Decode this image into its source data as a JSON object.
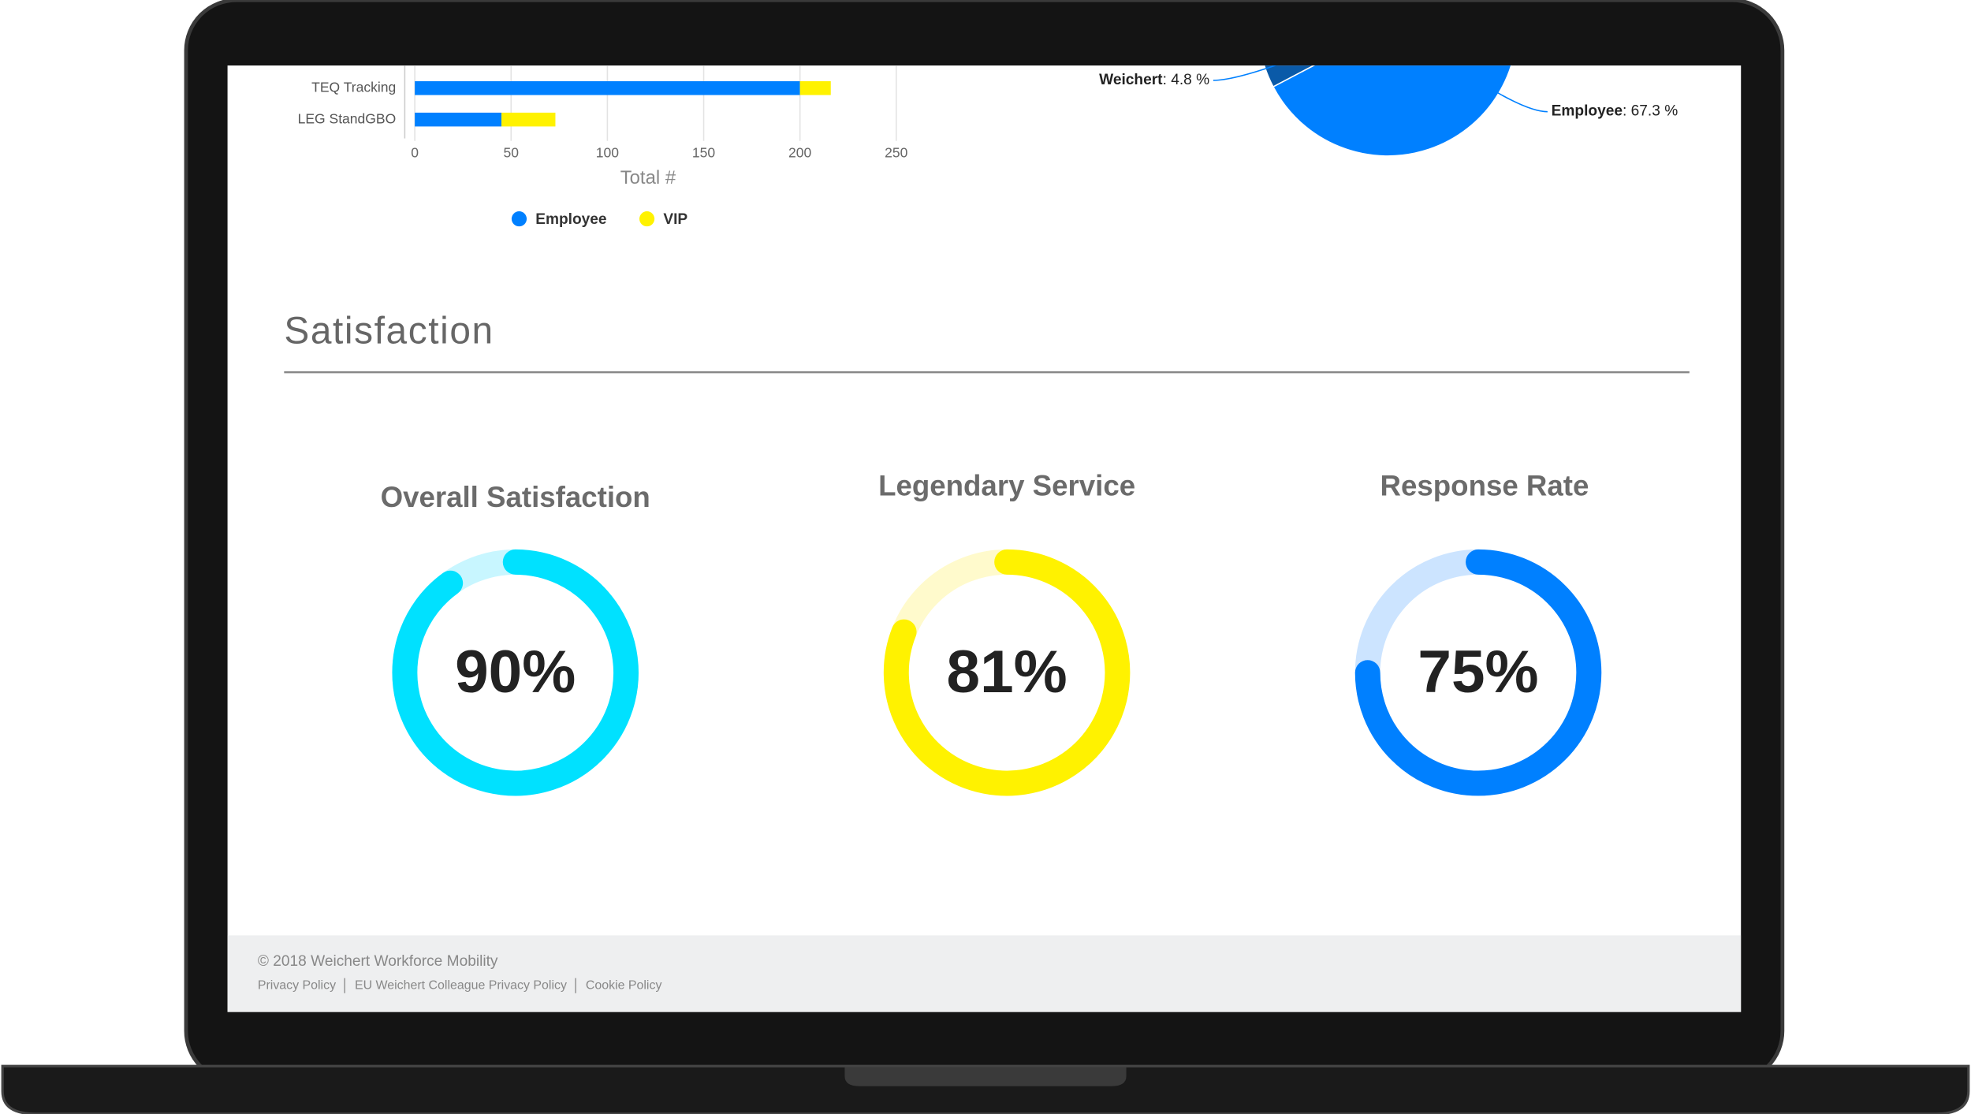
{
  "chart_data": [
    {
      "type": "hbar",
      "categories": [
        "TEQ Tracking",
        "LEG StandGBO"
      ],
      "series": [
        {
          "name": "Employee",
          "color": "#0080ff",
          "values": [
            200,
            45
          ]
        },
        {
          "name": "VIP",
          "color": "#fff200",
          "values": [
            16,
            28
          ]
        }
      ],
      "xlim": [
        0,
        250
      ],
      "xticks": [
        0,
        50,
        100,
        150,
        200,
        250
      ],
      "xlabel": "Total #",
      "grid": true,
      "legend": "bottom"
    },
    {
      "type": "pie",
      "categories": [
        "Employee",
        "Weichert"
      ],
      "values": [
        67.3,
        4.8
      ],
      "value_labels": [
        ": 67.3 %",
        ": 4.8 %"
      ],
      "colors": [
        "#0080ff",
        "#0a5aa8"
      ]
    },
    {
      "type": "gauge",
      "title": "Overall Satisfaction",
      "value": 90,
      "value_label": "90%",
      "color": "#00e1ff",
      "track_color": "#c8f6ff"
    },
    {
      "type": "gauge",
      "title": "Legendary Service",
      "value": 81,
      "value_label": "81%",
      "color": "#fff200",
      "track_color": "#fffacc"
    },
    {
      "type": "gauge",
      "title": "Response Rate",
      "value": 75,
      "value_label": "75%",
      "color": "#0080ff",
      "track_color": "#cce4ff"
    }
  ],
  "section": {
    "title": "Satisfaction"
  },
  "footer": {
    "copyright": "© 2018 Weichert Workforce Mobility",
    "links": [
      "Privacy Policy",
      "EU Weichert Colleague Privacy Policy",
      "Cookie Policy"
    ]
  }
}
